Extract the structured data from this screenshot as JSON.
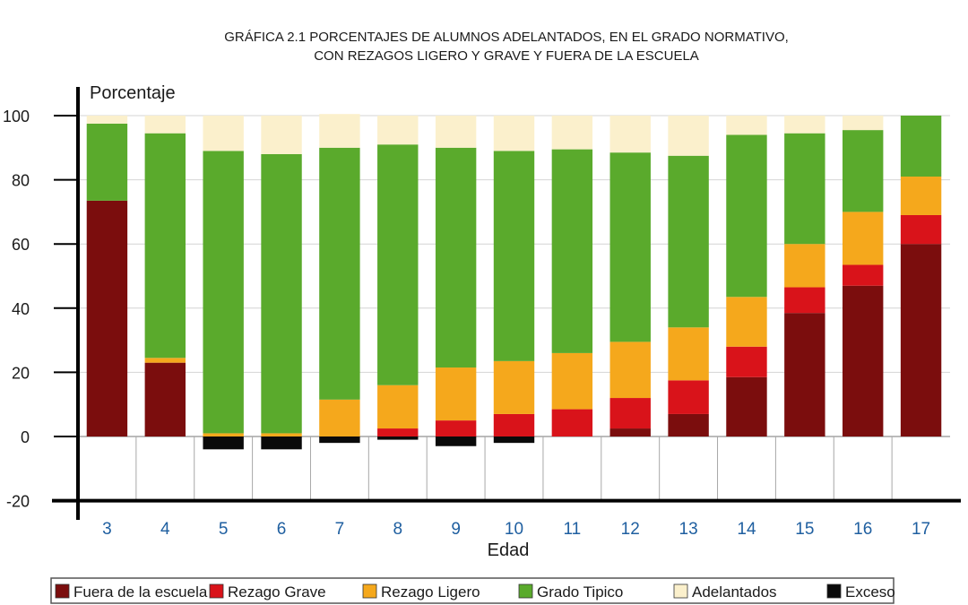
{
  "chart_data": {
    "type": "bar",
    "stacked": true,
    "title_lines": [
      "GRÁFICA 2.1 PORCENTAJES DE ALUMNOS ADELANTADOS, EN EL GRADO NORMATIVO,",
      "CON REZAGOS LIGERO Y GRAVE Y FUERA DE LA ESCUELA"
    ],
    "xlabel": "Edad",
    "ylabel": "Porcentaje",
    "ylim": [
      -20,
      100
    ],
    "yticks": [
      100,
      80,
      60,
      40,
      20,
      0,
      -20
    ],
    "categories": [
      "3",
      "4",
      "5",
      "6",
      "7",
      "8",
      "9",
      "10",
      "11",
      "12",
      "13",
      "14",
      "15",
      "16",
      "17"
    ],
    "legend_position": "bottom",
    "series": [
      {
        "name": "Fuera de la escuela",
        "color": "#7b0d0d",
        "values": [
          73.5,
          23,
          0,
          0,
          0,
          0,
          0,
          0,
          0,
          2.5,
          7,
          18.5,
          38.5,
          47,
          60
        ]
      },
      {
        "name": "Rezago Grave",
        "color": "#d9131a",
        "values": [
          0,
          0,
          0,
          0,
          0,
          2.5,
          5,
          7,
          8.5,
          9.5,
          10.5,
          9.5,
          8,
          6.5,
          9
        ]
      },
      {
        "name": "Rezago Ligero",
        "color": "#f5a81c",
        "values": [
          0,
          1.5,
          1,
          1,
          11.5,
          13.5,
          16.5,
          16.5,
          17.5,
          17.5,
          16.5,
          15.5,
          13.5,
          16.5,
          12
        ]
      },
      {
        "name": "Grado Tipico",
        "color": "#5aaa2c",
        "values": [
          24,
          70,
          88,
          87,
          78.5,
          75,
          68.5,
          65.5,
          63.5,
          59,
          53.5,
          50.5,
          34.5,
          25.5,
          19
        ]
      },
      {
        "name": "Adelantados",
        "color": "#fbf0cc",
        "values": [
          2.5,
          5.5,
          11,
          12,
          10.5,
          9,
          10,
          11,
          10.5,
          11.5,
          12.5,
          6,
          5.5,
          4.5,
          0
        ]
      },
      {
        "name": "Exceso",
        "color": "#0a0a0a",
        "values": [
          0,
          0,
          -4,
          -4,
          -2,
          -1,
          -3,
          -2,
          0,
          0,
          0,
          0,
          0,
          0,
          0
        ]
      }
    ]
  }
}
